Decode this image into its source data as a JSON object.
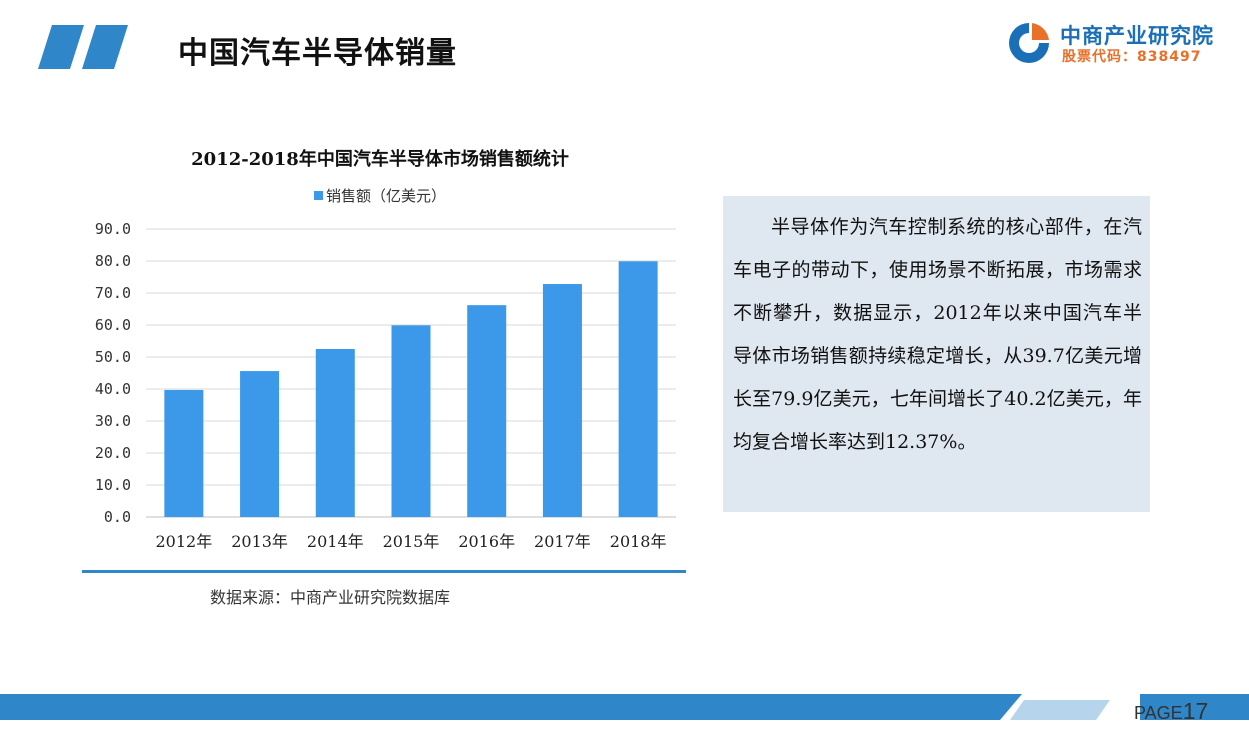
{
  "header": {
    "title": "中国汽车半导体销量",
    "accent_color": "#2f86c8"
  },
  "logo": {
    "name": "中商产业研究院",
    "stock_code": "股票代码：838497",
    "icon": "company-logo-icon"
  },
  "chart_data": {
    "type": "bar",
    "title": "2012-2018年中国汽车半导体市场销售额统计",
    "categories": [
      "2012年",
      "2013年",
      "2014年",
      "2015年",
      "2016年",
      "2017年",
      "2018年"
    ],
    "series": [
      {
        "name": "销售额（亿美元）",
        "values": [
          39.7,
          45.6,
          52.5,
          59.9,
          66.2,
          72.8,
          79.9
        ],
        "color": "#3c98e8"
      }
    ],
    "xlabel": "",
    "ylabel": "",
    "ylim": [
      0,
      90
    ],
    "yticks": [
      "0.0",
      "10.0",
      "20.0",
      "30.0",
      "40.0",
      "50.0",
      "60.0",
      "70.0",
      "80.0",
      "90.0"
    ],
    "grid": true,
    "legend_position": "top-center"
  },
  "source": "数据来源：中商产业研究院数据库",
  "description": "半导体作为汽车控制系统的核心部件，在汽车电子的带动下，使用场景不断拓展，市场需求不断攀升，数据显示，2012年以来中国汽车半导体市场销售额持续稳定增长，从39.7亿美元增长至79.9亿美元，七年间增长了40.2亿美元，年均复合增长率达到12.37%。",
  "footer": {
    "page_word": "PAGE",
    "page_number": "17"
  }
}
